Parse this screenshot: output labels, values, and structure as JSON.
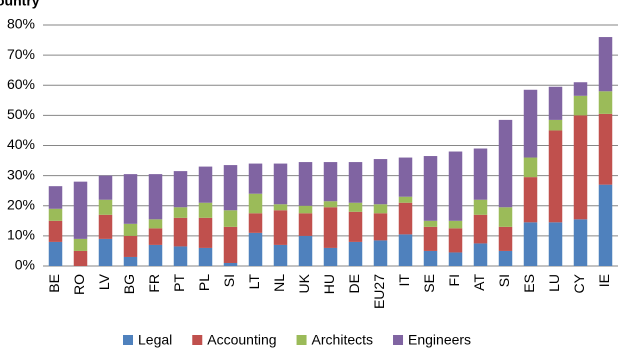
{
  "chart_data": {
    "type": "stacked_bar",
    "title": "ountry",
    "categories": [
      "BE",
      "RO",
      "LV",
      "BG",
      "FR",
      "PT",
      "PL",
      "SI",
      "LT",
      "NL",
      "UK",
      "HU",
      "DE",
      "EU27",
      "IT",
      "SE",
      "FI",
      "AT",
      "SI",
      "ES",
      "LU",
      "CY",
      "IE"
    ],
    "series": [
      {
        "name": "Legal",
        "color": "#4f81bd",
        "values": [
          8,
          0,
          9,
          3,
          7,
          6.5,
          6,
          1,
          11,
          7,
          10,
          6,
          8,
          8.5,
          10.5,
          5,
          4.5,
          7.5,
          5,
          14.5,
          14.5,
          15.5,
          27
        ]
      },
      {
        "name": "Accounting",
        "color": "#c0504d",
        "values": [
          7,
          5,
          8,
          7,
          5.5,
          9.5,
          10,
          12,
          6.5,
          11.5,
          7.5,
          13.5,
          10,
          9,
          10.5,
          8,
          8,
          9.5,
          8,
          15,
          30.5,
          34.5,
          23.5
        ]
      },
      {
        "name": "Architects",
        "color": "#9bbb59",
        "values": [
          4,
          4,
          5,
          4,
          3,
          3.5,
          5,
          5.5,
          6.5,
          2,
          2.5,
          2,
          3,
          3,
          2,
          2,
          2.5,
          5,
          6.5,
          6.5,
          3.5,
          6.5,
          7.5
        ]
      },
      {
        "name": "Engineers",
        "color": "#8064a2",
        "values": [
          7.5,
          19,
          8,
          16.5,
          15,
          12,
          12,
          15,
          10,
          13.5,
          14.5,
          13,
          13.5,
          15,
          13,
          21.5,
          23,
          17,
          29,
          22.5,
          11,
          4.5,
          18
        ]
      }
    ],
    "ylim": [
      0,
      80
    ],
    "yticks": [
      {
        "value": 0,
        "label": "0%"
      },
      {
        "value": 10,
        "label": "10%"
      },
      {
        "value": 20,
        "label": "20%"
      },
      {
        "value": 30,
        "label": "30%"
      },
      {
        "value": 40,
        "label": "40%"
      },
      {
        "value": 50,
        "label": "50%"
      },
      {
        "value": 60,
        "label": "60%"
      },
      {
        "value": 70,
        "label": "70%"
      },
      {
        "value": 80,
        "label": "80%"
      }
    ],
    "grid": true
  }
}
